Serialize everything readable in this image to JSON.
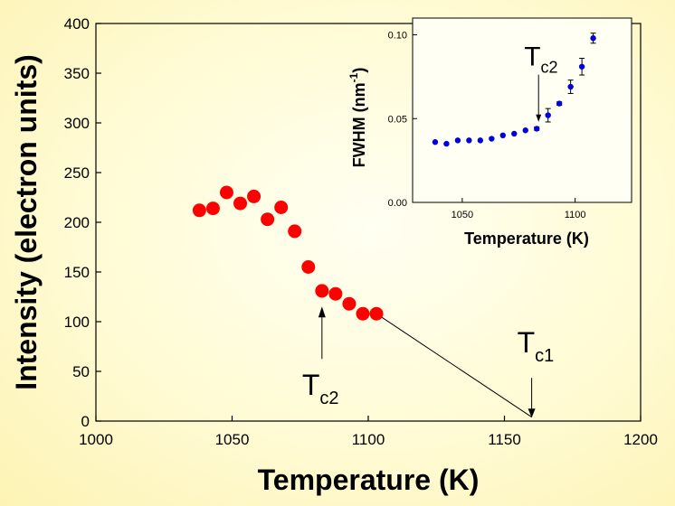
{
  "chart_data": [
    {
      "type": "scatter",
      "title": "",
      "xlabel": "Temperature  (K)",
      "ylabel": "Intensity  (electron units)",
      "xlim": [
        1000,
        1200
      ],
      "ylim": [
        0,
        400
      ],
      "xticks": [
        1000,
        1050,
        1100,
        1150,
        1200
      ],
      "yticks": [
        0,
        50,
        100,
        150,
        200,
        250,
        300,
        350,
        400
      ],
      "grid": false,
      "colors": {
        "points": "#ff0000",
        "line": "#000000"
      },
      "series": [
        {
          "x": [
            1038,
            1043,
            1048,
            1053,
            1058,
            1063,
            1068,
            1073,
            1078,
            1083,
            1088,
            1093,
            1098,
            1103
          ],
          "y": [
            212,
            214,
            230,
            219,
            226,
            203,
            215,
            191,
            155,
            131,
            128,
            118,
            108,
            108
          ]
        }
      ],
      "extrapolation_line": {
        "x": [
          1103,
          1160
        ],
        "y": [
          108,
          4
        ]
      },
      "annotations": [
        {
          "label_main": "T",
          "label_sub": "c2",
          "x": 1083,
          "y": 128
        },
        {
          "label_main": "T",
          "label_sub": "c1",
          "x": 1160,
          "y": 18
        }
      ]
    },
    {
      "type": "scatter",
      "title": "",
      "xlabel": "Temperature  (K)",
      "ylabel_main": "FWHM  (nm",
      "ylabel_sup": "-1",
      "ylabel_end": ")",
      "xlim": [
        1028,
        1125
      ],
      "ylim": [
        0,
        0.11
      ],
      "xticks": [
        1050,
        1100
      ],
      "yticks": [
        "0.00",
        "0.05",
        "0.10"
      ],
      "grid": false,
      "colors": {
        "points": "#0000dd",
        "errorbars": "#000000"
      },
      "series": [
        {
          "x": [
            1038,
            1043,
            1048,
            1053,
            1058,
            1063,
            1068,
            1073,
            1078,
            1083,
            1088,
            1093,
            1098,
            1103,
            1108
          ],
          "y": [
            0.036,
            0.035,
            0.037,
            0.037,
            0.037,
            0.038,
            0.04,
            0.041,
            0.043,
            0.044,
            0.052,
            0.059,
            0.069,
            0.081,
            0.098
          ],
          "err": [
            0,
            0,
            0,
            0,
            0,
            0,
            0,
            0,
            0,
            0.001,
            0.004,
            0.001,
            0.004,
            0.005,
            0.003
          ]
        }
      ],
      "annotations": [
        {
          "label_main": "T",
          "label_sub": "c2",
          "x": 1083,
          "y": 0.046
        }
      ]
    }
  ]
}
